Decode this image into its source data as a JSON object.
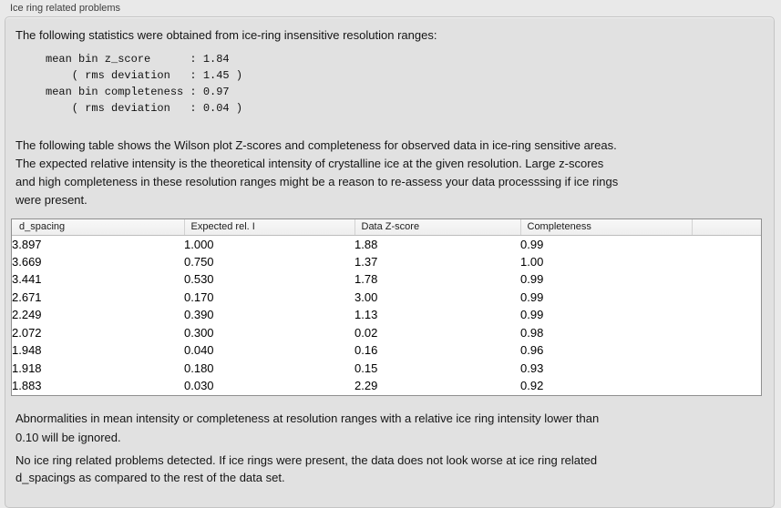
{
  "panel": {
    "title": "Ice ring related problems"
  },
  "intro": {
    "text": "The following statistics were obtained from ice-ring insensitive resolution ranges:"
  },
  "stats": {
    "lines": [
      "mean bin z_score      : 1.84",
      "    ( rms deviation   : 1.45 )",
      "mean bin completeness : 0.97",
      "    ( rms deviation   : 0.04 )"
    ],
    "mean_bin_z_score": "1.84",
    "z_score_rms_deviation": "1.45",
    "mean_bin_completeness": "0.97",
    "completeness_rms_deviation": "0.04"
  },
  "desc": {
    "text": "The following table shows the Wilson plot Z-scores and completeness for observed data in ice-ring sensitive areas.\nThe expected relative intensity is the theoretical intensity of crystalline ice at the given resolution. Large z-scores\nand high completeness in these resolution ranges might be a reason to re-assess your data processsing if ice rings\nwere present."
  },
  "table": {
    "columns": [
      "d_spacing",
      "Expected rel. I",
      "Data Z-score",
      "Completeness"
    ],
    "rows": [
      [
        "3.897",
        "1.000",
        "1.88",
        "0.99"
      ],
      [
        "3.669",
        "0.750",
        "1.37",
        "1.00"
      ],
      [
        "3.441",
        "0.530",
        "1.78",
        "0.99"
      ],
      [
        "2.671",
        "0.170",
        "3.00",
        "0.99"
      ],
      [
        "2.249",
        "0.390",
        "1.13",
        "0.99"
      ],
      [
        "2.072",
        "0.300",
        "0.02",
        "0.98"
      ],
      [
        "1.948",
        "0.040",
        "0.16",
        "0.96"
      ],
      [
        "1.918",
        "0.180",
        "0.15",
        "0.93"
      ],
      [
        "1.883",
        "0.030",
        "2.29",
        "0.92"
      ]
    ]
  },
  "notes": {
    "ignore": "Abnormalities in mean intensity or completeness at resolution ranges with a relative ice ring intensity lower than\n0.10 will be ignored.",
    "conclusion": "No ice ring related problems detected. If ice rings were present, the data does not look worse at ice ring related\nd_spacings as compared to the rest of the data set."
  },
  "colors": {
    "page_bg": "#e9e9e9",
    "panel_bg": "#e1e1e1",
    "panel_border": "#c4c4c4",
    "table_border": "#8f8f8f",
    "table_header_bg": "#f2f2f2",
    "text": "#151515"
  }
}
